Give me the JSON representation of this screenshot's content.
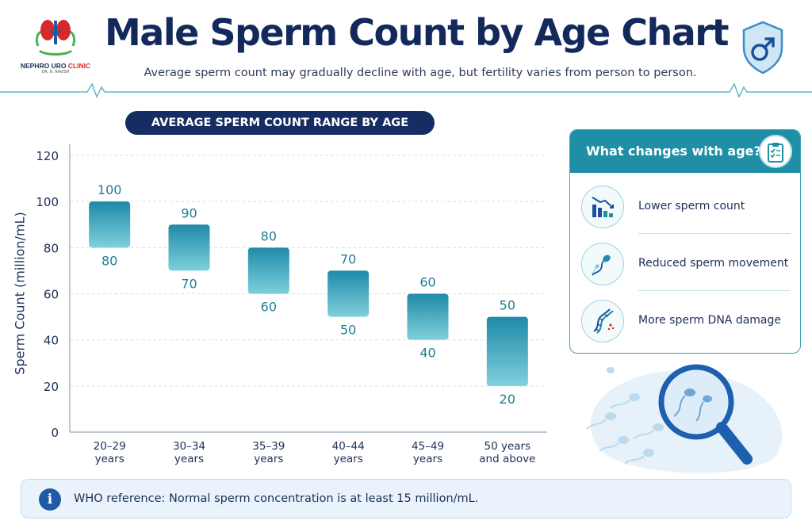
{
  "logo": {
    "name_part1": "NEPHRO URO",
    "name_part2": "CLINIC",
    "sub": "DR. R. RAVISH"
  },
  "header": {
    "title": "Male Sperm Count by Age Chart",
    "subtitle": "Average sperm count may gradually decline with age, but fertility varies from person to person."
  },
  "chart_data": {
    "type": "bar",
    "subtype": "floating range",
    "title": "AVERAGE SPERM COUNT RANGE BY AGE",
    "ylabel": "Sperm Count (million/mL)",
    "xlabel": "",
    "ylim": [
      0,
      120
    ],
    "yticks": [
      0,
      20,
      40,
      60,
      80,
      100,
      120
    ],
    "grid": true,
    "categories": [
      [
        "20–29",
        "years"
      ],
      [
        "30–34",
        "years"
      ],
      [
        "35–39",
        "years"
      ],
      [
        "40–44",
        "years"
      ],
      [
        "45–49",
        "years"
      ],
      [
        "50 years",
        "and above"
      ]
    ],
    "ranges": [
      {
        "low": 80,
        "high": 100
      },
      {
        "low": 70,
        "high": 90
      },
      {
        "low": 60,
        "high": 80
      },
      {
        "low": 50,
        "high": 70
      },
      {
        "low": 40,
        "high": 60
      },
      {
        "low": 20,
        "high": 50
      }
    ],
    "colors": {
      "bar_top": "#1f8aa8",
      "bar_bottom": "#7fd0dc",
      "label": "#1f7e94",
      "axis": "#1c2e57"
    }
  },
  "panel": {
    "title": "What changes with age?",
    "title_icon": "clipboard-checklist-icon",
    "items": [
      {
        "label": "Lower sperm count",
        "icon": "declining-bar-chart-icon"
      },
      {
        "label": "Reduced sperm movement",
        "icon": "sperm-icon"
      },
      {
        "label": "More sperm DNA damage",
        "icon": "dna-icon"
      }
    ]
  },
  "reference": {
    "icon": "info-icon",
    "glyph": "i",
    "text": "WHO reference:  Normal sperm concentration is at least 15 million/mL."
  },
  "icons": {
    "header_right": "male-symbol-shield-icon",
    "illustration": "magnifying-glass-sperm-icon"
  },
  "colors": {
    "navy": "#13295c",
    "teal": "#1f8fa6",
    "info_bg": "#eaf3fb"
  }
}
